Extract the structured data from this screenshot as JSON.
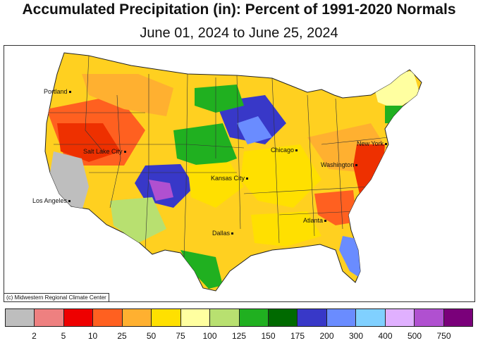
{
  "title": "Accumulated Precipitation (in): Percent of 1991-2020 Normals",
  "subtitle": "June 01, 2024 to June 25, 2024",
  "credit": "(c) Midwestern Regional Climate Center",
  "cities": [
    {
      "name": "Portland"
    },
    {
      "name": "Salt Lake City"
    },
    {
      "name": "Los Angeles"
    },
    {
      "name": "Kansas City"
    },
    {
      "name": "Dallas"
    },
    {
      "name": "Chicago"
    },
    {
      "name": "Washington"
    },
    {
      "name": "New York"
    },
    {
      "name": "Atlanta"
    }
  ],
  "legend": {
    "colors": [
      "#bebebe",
      "#ee8080",
      "#ee0000",
      "#ff6020",
      "#ffb030",
      "#ffe000",
      "#ffffa0",
      "#b8e070",
      "#20b020",
      "#006a00",
      "#3838c8",
      "#6a8cff",
      "#80d0ff",
      "#e0b0ff",
      "#b050d0",
      "#7a007a"
    ],
    "ticks": [
      "2",
      "5",
      "10",
      "25",
      "50",
      "75",
      "100",
      "125",
      "150",
      "175",
      "200",
      "300",
      "400",
      "500",
      "750"
    ]
  }
}
